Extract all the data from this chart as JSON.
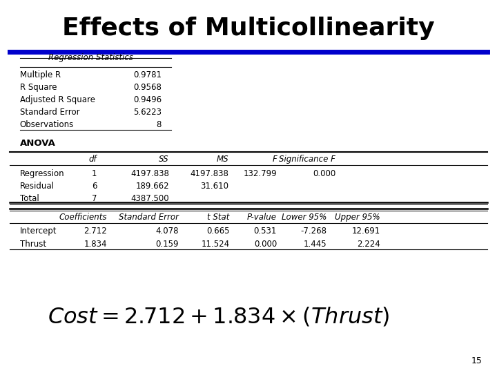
{
  "title": "Effects of Multicollinearity",
  "title_fontsize": 26,
  "title_fontweight": "bold",
  "bg_color": "#ffffff",
  "blue_line_color": "#0000CC",
  "page_number": "15",
  "reg_stats_header": "Regression Statistics",
  "reg_stats_rows": [
    [
      "Multiple R",
      "0.9781"
    ],
    [
      "R Square",
      "0.9568"
    ],
    [
      "Adjusted R Square",
      "0.9496"
    ],
    [
      "Standard Error",
      "5.6223"
    ],
    [
      "Observations",
      "8"
    ]
  ],
  "anova_label": "ANOVA",
  "anova_headers": [
    "",
    "df",
    "SS",
    "MS",
    "F",
    "Significance F"
  ],
  "anova_rows": [
    [
      "Regression",
      "1",
      "4197.838",
      "4197.838",
      "132.799",
      "0.000"
    ],
    [
      "Residual",
      "6",
      "189.662",
      "31.610",
      "",
      ""
    ],
    [
      "Total",
      "7",
      "4387.500",
      "",
      "",
      ""
    ]
  ],
  "coeff_headers": [
    "",
    "Coefficients",
    "Standard Error",
    "t Stat",
    "P-value",
    "Lower 95%",
    "Upper 95%"
  ],
  "coeff_rows": [
    [
      "Intercept",
      "2.712",
      "4.078",
      "0.665",
      "0.531",
      "-7.268",
      "12.691"
    ],
    [
      "Thrust",
      "1.834",
      "0.159",
      "11.524",
      "0.000",
      "1.445",
      "2.224"
    ]
  ]
}
